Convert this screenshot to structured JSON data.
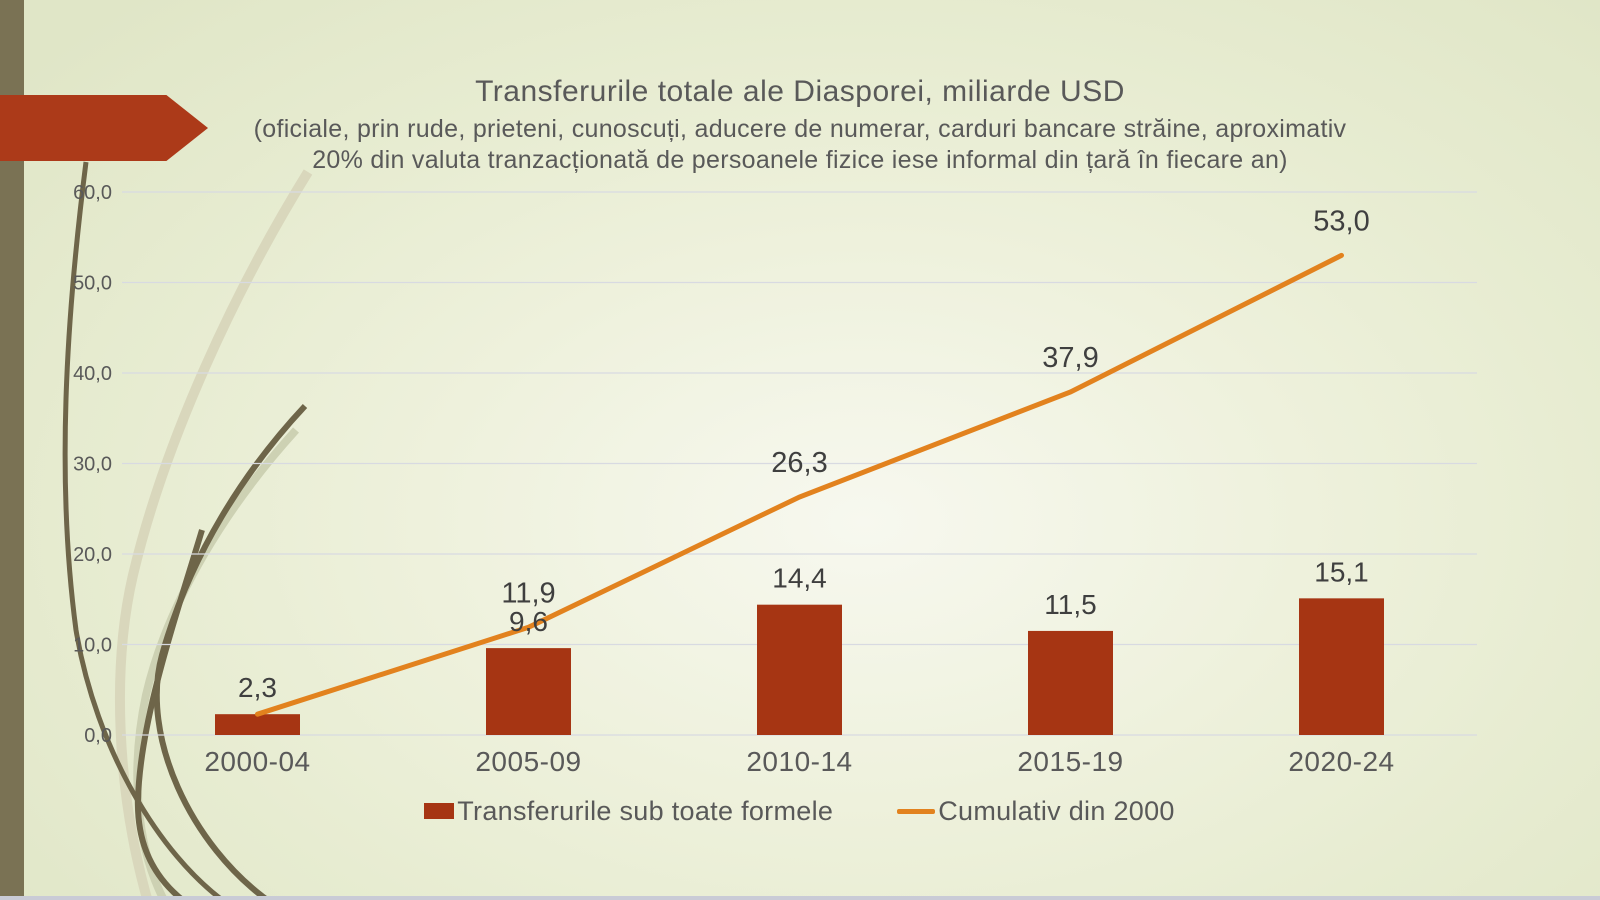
{
  "slide": {
    "title": "Transferurile totale ale Diasporei, miliarde USD",
    "subtitle": "(oficiale, prin rude, prieteni, cunoscuți, aducere de numerar, carduri bancare străine, aproximativ\n20% din valuta tranzacționată de persoanele fizice iese informal din țară în fiecare an)"
  },
  "chart_data": {
    "type": "bar+line",
    "title": "Transferurile totale ale Diasporei, miliarde USD",
    "categories": [
      "2000-04",
      "2005-09",
      "2010-14",
      "2015-19",
      "2020-24"
    ],
    "series": [
      {
        "name": "Transferurile sub toate formele",
        "type": "bar",
        "color": "#a63513",
        "values": [
          2.3,
          9.6,
          14.4,
          11.5,
          15.1
        ],
        "labels": [
          "2,3",
          "9,6",
          "14,4",
          "11,5",
          "15,1"
        ]
      },
      {
        "name": "Cumulativ din 2000",
        "type": "line",
        "color": "#e2821e",
        "values": [
          2.3,
          11.9,
          26.3,
          37.9,
          53.0
        ],
        "labels": [
          "",
          "11,9",
          "26,3",
          "37,9",
          "53,0"
        ]
      }
    ],
    "xlabel": "",
    "ylabel": "",
    "ylim": [
      0,
      60
    ],
    "yticks": [
      "0,0",
      "10,0",
      "20,0",
      "30,0",
      "40,0",
      "50,0",
      "60,0"
    ],
    "grid": true,
    "legend_position": "bottom",
    "decimal_separator": ","
  },
  "colors": {
    "bar_red": "#a63513",
    "arrow_red": "#ac3a19",
    "line_orange": "#e2821e",
    "gridline": "#d8dae1",
    "axis_text": "#595959",
    "data_label_text": "#3f3f3f",
    "sidebar_olive": "#7a7254",
    "background_green": "#e9edd4"
  }
}
